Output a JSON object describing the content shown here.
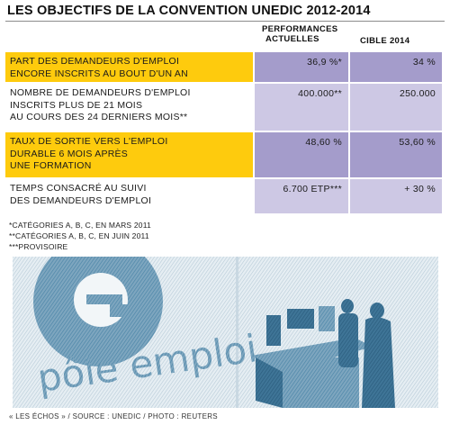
{
  "title": "LES OBJECTIFS DE LA CONVENTION UNEDIC 2012-2014",
  "headers": {
    "performances": [
      "PERFORMANCES",
      "ACTUELLES"
    ],
    "cible": "CIBLE 2014"
  },
  "rows": [
    {
      "label_lines": [
        "PART DES DEMANDEURS D'EMPLOI",
        "ENCORE INSCRITS AU BOUT D'UN AN"
      ],
      "performance": "36,9 %*",
      "cible": "34 %",
      "highlight": true
    },
    {
      "label_lines": [
        "Nombre de demandeurs d'emploi",
        "inscrits plus de 21 mois",
        "au cours des 24 derniers mois**"
      ],
      "performance": "400.000**",
      "cible": "250.000",
      "highlight": false
    },
    {
      "label_lines": [
        "TAUX DE SORTIE VERS L'EMPLOI",
        "DURABLE 6 MOIS APRÈS",
        "UNE FORMATION"
      ],
      "performance": "48,60 %",
      "cible": "53,60 %",
      "highlight": true
    },
    {
      "label_lines": [
        "TEMPS CONSACRÉ AU SUIVI",
        "DES DEMANDEURS D'EMPLOI"
      ],
      "performance": "6.700 ETP***",
      "cible": "+ 30 %",
      "highlight": false
    }
  ],
  "footnotes": [
    "*CATÉGORIES A, B, C, EN MARS 2011",
    "**CATÉGORIES A, B, C, EN JUIN 2011",
    "***PROVISOIRE"
  ],
  "photo": {
    "logo_text": "pôle emploi",
    "logo_icon": "pole-emploi-e-logo"
  },
  "credit": "« LES ÉCHOS » / SOURCE : UNEDIC / PHOTO : REUTERS",
  "colors": {
    "yellow": "#fecb0d",
    "purple_dark": "#a49ccb",
    "purple_light": "#cdc8e4",
    "photo_blue": "#4d86a8"
  }
}
